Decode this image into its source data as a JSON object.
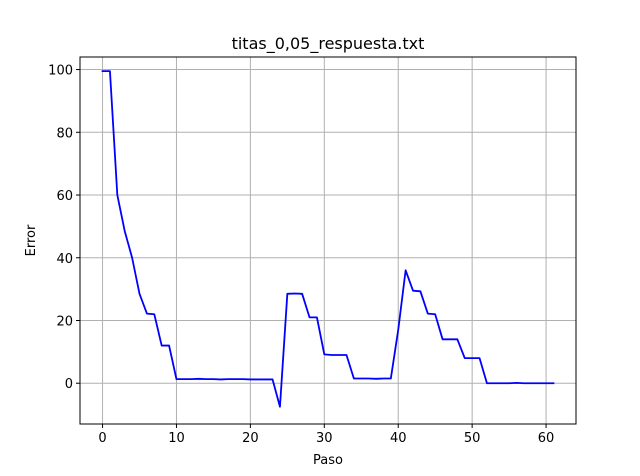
{
  "chart_data": {
    "type": "line",
    "title": "titas_0,05_respuesta.txt",
    "xlabel": "Paso",
    "ylabel": "Error",
    "xlim": [
      -3.05,
      64.05
    ],
    "ylim": [
      -13.0,
      104.0
    ],
    "xticks": [
      0,
      10,
      20,
      30,
      40,
      50,
      60
    ],
    "yticks": [
      0,
      20,
      40,
      60,
      80,
      100
    ],
    "grid": true,
    "legend": "none",
    "color": "#0000ff",
    "series": [
      {
        "x": [
          0,
          1,
          2,
          3,
          4,
          5,
          6,
          7,
          8,
          9,
          10,
          11,
          12,
          13,
          14,
          15,
          16,
          17,
          18,
          19,
          20,
          21,
          22,
          23,
          24,
          25,
          26,
          27,
          28,
          29,
          30,
          31,
          32,
          33,
          34,
          35,
          36,
          37,
          38,
          39,
          40,
          41,
          42,
          43,
          44,
          45,
          46,
          47,
          48,
          49,
          50,
          51,
          52,
          53,
          54,
          55,
          56,
          57,
          58,
          59,
          60,
          61
        ],
        "y": [
          99.5,
          99.5,
          60.0,
          48.5,
          40.0,
          28.5,
          22.2,
          22.0,
          12.0,
          12.0,
          1.3,
          1.3,
          1.3,
          1.4,
          1.3,
          1.3,
          1.2,
          1.3,
          1.3,
          1.3,
          1.2,
          1.2,
          1.2,
          1.2,
          -7.5,
          28.5,
          28.6,
          28.5,
          21.0,
          21.0,
          9.2,
          9.0,
          9.0,
          9.0,
          1.5,
          1.5,
          1.5,
          1.4,
          1.5,
          1.5,
          17.0,
          36.0,
          29.5,
          29.3,
          22.2,
          22.0,
          14.0,
          14.0,
          14.0,
          8.0,
          8.0,
          8.0,
          0.0,
          0.0,
          0.0,
          0.0,
          0.1,
          0.0,
          0.0,
          0.0,
          0.0,
          0.0
        ]
      }
    ]
  }
}
